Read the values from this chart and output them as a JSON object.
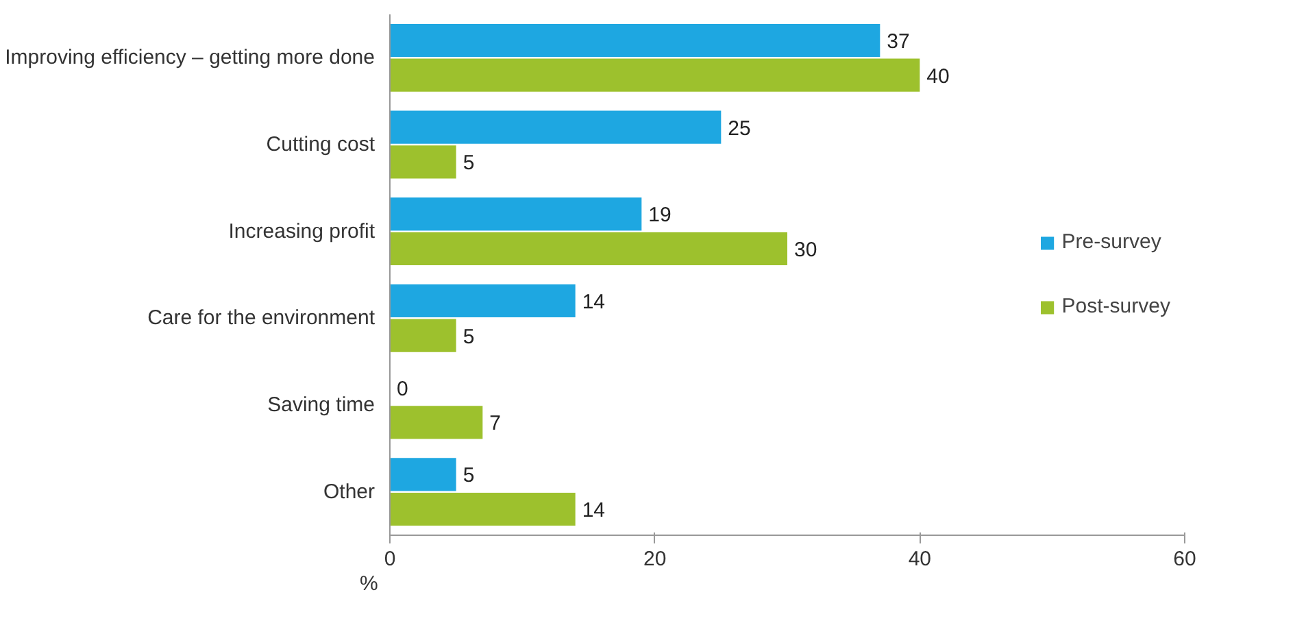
{
  "chart_data": {
    "type": "bar",
    "orientation": "horizontal",
    "xlabel": "%",
    "categories": [
      "Improving efficiency – getting more done",
      "Cutting cost",
      "Increasing profit",
      "Care for the environment",
      "Saving time",
      "Other"
    ],
    "series": [
      {
        "name": "Pre-survey",
        "color": "#1ea7e1",
        "values": [
          37,
          25,
          19,
          14,
          0,
          5
        ]
      },
      {
        "name": "Post-survey",
        "color": "#9dc12d",
        "values": [
          40,
          5,
          30,
          5,
          7,
          14
        ]
      }
    ],
    "xlim": [
      0,
      60
    ],
    "xticks": [
      0,
      20,
      40,
      60
    ],
    "grid": false,
    "legend": "right",
    "data_labels": true
  }
}
